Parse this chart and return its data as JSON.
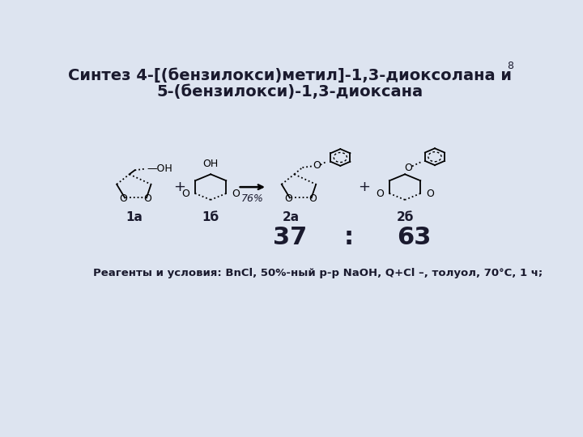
{
  "title_line1": "Синтез 4-[(бензилокси)метил]-1,3-диоксолана и",
  "title_line2": "5-(бензилокси)-1,3-диоксана",
  "slide_number": "8",
  "label_1a": "1а",
  "label_1b": "1б",
  "label_2a": "2а",
  "label_2b": "2б",
  "yield_text": "76%",
  "ratio_left": "37",
  "ratio_colon": ":",
  "ratio_right": "63",
  "reagents_text": "Реагенты и условия: BnCl, 50%-ный р-р NaOH, Q+Cl –, толуол, 70°C, 1 ч;",
  "bg_color": "#dde4f0",
  "text_color": "#1a1a2e",
  "title_fontsize": 14,
  "label_fontsize": 11,
  "reagents_fontsize": 9.5,
  "number_fontsize": 9,
  "ratio_fontsize": 22
}
